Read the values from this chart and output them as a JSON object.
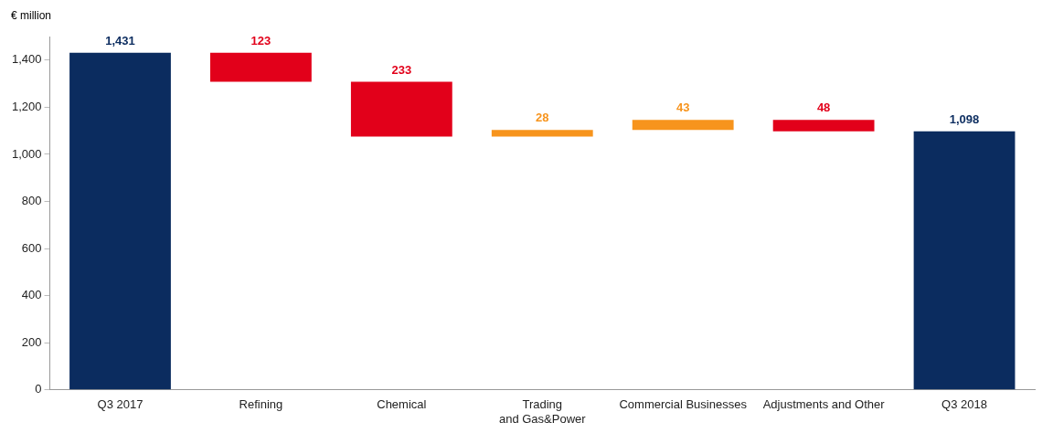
{
  "chart_data": {
    "type": "bar",
    "ylabel": "€ million",
    "categories": [
      "Q3 2017",
      "Refining",
      "Chemical",
      "Trading\nand Gas&Power",
      "Commercial Businesses",
      "Adjustments and Other",
      "Q3 2018"
    ],
    "values": [
      1431,
      123,
      233,
      28,
      43,
      48,
      1098
    ],
    "base": [
      0,
      1308,
      1075,
      1075,
      1103,
      1098,
      0
    ],
    "colors": [
      "#0b2c5f",
      "#e2001a",
      "#e2001a",
      "#f7941d",
      "#f7941d",
      "#e2001a",
      "#0b2c5f"
    ],
    "value_labels": [
      "1,431",
      "123",
      "233",
      "28",
      "43",
      "48",
      "1,098"
    ],
    "ylim": [
      0,
      1500
    ],
    "yticks": [
      {
        "value": 0,
        "label": "0"
      },
      {
        "value": 200,
        "label": "200"
      },
      {
        "value": 400,
        "label": "400"
      },
      {
        "value": 600,
        "label": "600"
      },
      {
        "value": 800,
        "label": "800"
      },
      {
        "value": 1000,
        "label": "1,000"
      },
      {
        "value": 1200,
        "label": "1,200"
      },
      {
        "value": 1400,
        "label": "1,400"
      }
    ],
    "grid": false,
    "legend": false
  }
}
